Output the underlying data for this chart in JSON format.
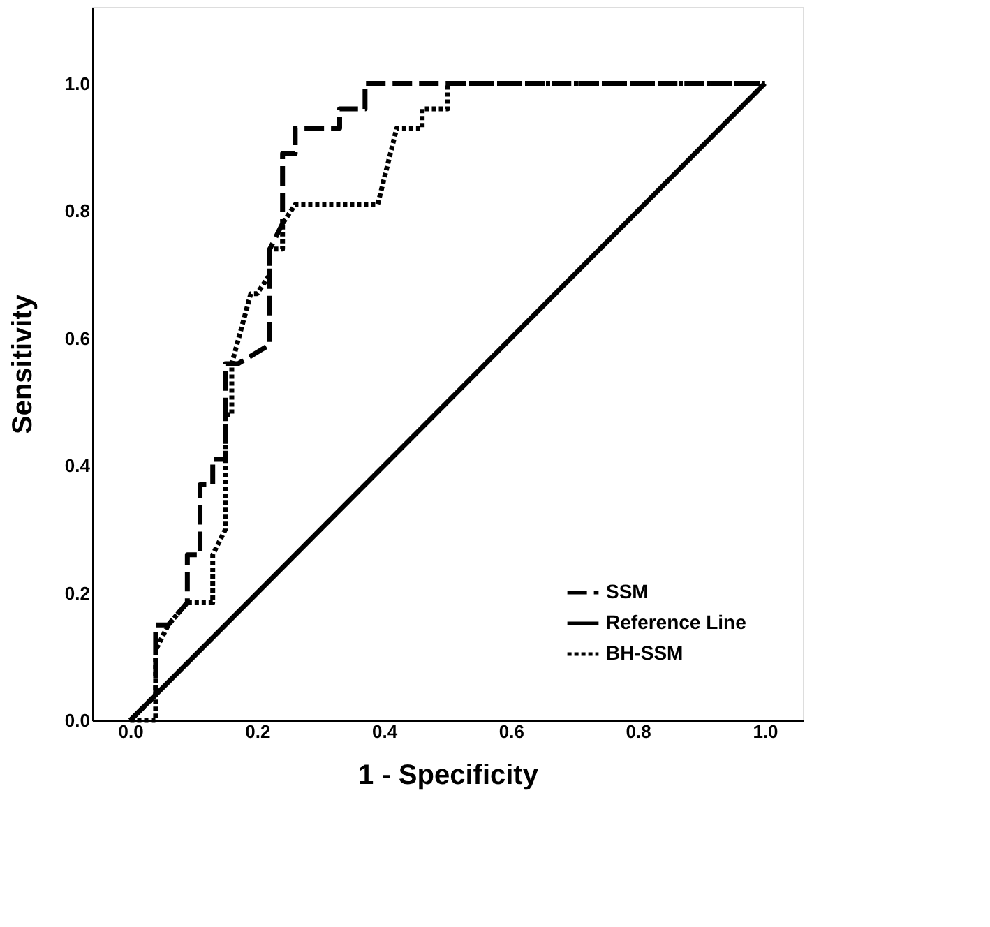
{
  "chart_data": {
    "type": "line",
    "xlabel": "1 - Specificity",
    "ylabel": "Sensitivity",
    "xlim": [
      -0.06,
      1.06
    ],
    "ylim": [
      0,
      1.12
    ],
    "xticks": [
      {
        "value": 0,
        "label": "0.0"
      },
      {
        "value": 0.2,
        "label": "0.2"
      },
      {
        "value": 0.4,
        "label": "0.4"
      },
      {
        "value": 0.6,
        "label": "0.6"
      },
      {
        "value": 0.8,
        "label": "0.8"
      },
      {
        "value": 1,
        "label": "1.0"
      }
    ],
    "yticks": [
      {
        "value": 0,
        "label": "0.0"
      },
      {
        "value": 0.2,
        "label": "0.2"
      },
      {
        "value": 0.4,
        "label": "0.4"
      },
      {
        "value": 0.6,
        "label": "0.6"
      },
      {
        "value": 0.8,
        "label": "0.8"
      },
      {
        "value": 1,
        "label": "1.0"
      }
    ],
    "grid": false,
    "legend": "bottom right",
    "marker": "none",
    "series": [
      {
        "name": "SSM",
        "color": "#000000",
        "line_style": "dashed",
        "x": [
          0,
          0.04,
          0.04,
          0.06,
          0.09,
          0.09,
          0.11,
          0.11,
          0.13,
          0.13,
          0.15,
          0.15,
          0.17,
          0.22,
          0.22,
          0.24,
          0.24,
          0.26,
          0.26,
          0.33,
          0.33,
          0.37,
          0.37,
          1.0
        ],
        "values": [
          0,
          0.04,
          0.15,
          0.15,
          0.185,
          0.26,
          0.26,
          0.37,
          0.37,
          0.41,
          0.41,
          0.56,
          0.56,
          0.59,
          0.74,
          0.78,
          0.89,
          0.89,
          0.93,
          0.93,
          0.96,
          0.96,
          1.0,
          1.0
        ]
      },
      {
        "name": "Reference Line",
        "color": "#000000",
        "line_style": "solid",
        "x": [
          0,
          1
        ],
        "values": [
          0,
          1
        ]
      },
      {
        "name": "BH-SSM",
        "color": "#000000",
        "line_style": "dotted",
        "x": [
          0,
          0.04,
          0.04,
          0.06,
          0.09,
          0.13,
          0.13,
          0.15,
          0.15,
          0.16,
          0.16,
          0.19,
          0.2,
          0.22,
          0.22,
          0.24,
          0.24,
          0.26,
          0.39,
          0.42,
          0.46,
          0.46,
          0.5,
          0.5,
          1.0
        ],
        "values": [
          0,
          0,
          0.11,
          0.15,
          0.185,
          0.185,
          0.26,
          0.3,
          0.48,
          0.48,
          0.56,
          0.67,
          0.67,
          0.7,
          0.74,
          0.74,
          0.78,
          0.81,
          0.81,
          0.93,
          0.93,
          0.96,
          0.96,
          1.0,
          1.0
        ]
      }
    ]
  }
}
